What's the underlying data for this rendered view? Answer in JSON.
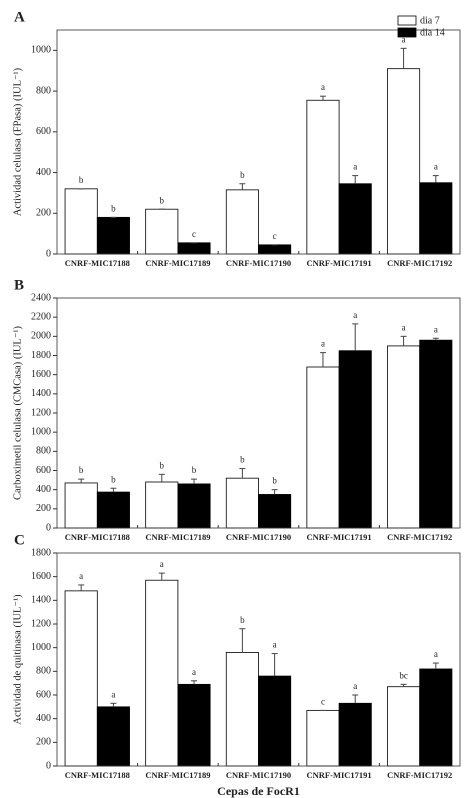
{
  "chart_data": [
    {
      "type": "bar",
      "panel": "A",
      "ylabel": "Actividad celulasa (FPasa) (IUL⁻¹)",
      "categories": [
        "CNRF-MIC17188",
        "CNRF-MIC17189",
        "CNRF-MIC17190",
        "CNRF-MIC17191",
        "CNRF-MIC17192"
      ],
      "series": [
        {
          "name": "dia 7",
          "color": "#ffffff",
          "values": [
            320,
            220,
            315,
            755,
            910
          ],
          "errors": [
            0,
            0,
            30,
            20,
            100
          ],
          "letters": [
            "b",
            "b",
            "b",
            "a",
            "a"
          ]
        },
        {
          "name": "dia 14",
          "color": "#000000",
          "values": [
            180,
            55,
            45,
            345,
            350
          ],
          "errors": [
            0,
            0,
            0,
            40,
            35
          ],
          "letters": [
            "b",
            "c",
            "c",
            "a",
            "a"
          ]
        }
      ],
      "ylim": [
        0,
        1100
      ],
      "yticks": [
        0,
        200,
        400,
        600,
        800,
        1000
      ],
      "legend": "upper right"
    },
    {
      "type": "bar",
      "panel": "B",
      "ylabel": "Carboximetil celulasa (CMCasa) (IUL⁻¹)",
      "categories": [
        "CNRF-MIC17188",
        "CNRF-MIC17189",
        "CNRF-MIC17190",
        "CNRF-MIC17191",
        "CNRF-MIC17192"
      ],
      "series": [
        {
          "color": "#ffffff",
          "values": [
            470,
            480,
            520,
            1680,
            1900
          ],
          "errors": [
            40,
            80,
            100,
            150,
            100
          ],
          "letters": [
            "b",
            "b",
            "b",
            "a",
            "a"
          ]
        },
        {
          "color": "#000000",
          "values": [
            375,
            460,
            350,
            1850,
            1960
          ],
          "errors": [
            40,
            50,
            50,
            280,
            20
          ],
          "letters": [
            "b",
            "b",
            "b",
            "a",
            "a"
          ]
        }
      ],
      "ylim": [
        0,
        2400
      ],
      "yticks": [
        0,
        200,
        400,
        600,
        800,
        1000,
        1200,
        1400,
        1600,
        1800,
        2000,
        2200,
        2400
      ]
    },
    {
      "type": "bar",
      "panel": "C",
      "ylabel": "Actividad de quitinasa (IUL⁻¹)",
      "xlabel": "Cepas de FocR1",
      "categories": [
        "CNRF-MIC17188",
        "CNRF-MIC17189",
        "CNRF-MIC17190",
        "CNRF-MIC17191",
        "CNRF-MIC17192"
      ],
      "series": [
        {
          "color": "#ffffff",
          "values": [
            1480,
            1570,
            960,
            470,
            670
          ],
          "errors": [
            50,
            60,
            200,
            0,
            20
          ],
          "letters": [
            "a",
            "a",
            "b",
            "c",
            "bc"
          ]
        },
        {
          "color": "#000000",
          "values": [
            500,
            690,
            760,
            530,
            820
          ],
          "errors": [
            30,
            30,
            190,
            70,
            50
          ],
          "letters": [
            "a",
            "a",
            "a",
            "a",
            "a"
          ]
        }
      ],
      "ylim": [
        0,
        1800
      ],
      "yticks": [
        0,
        200,
        400,
        600,
        800,
        1000,
        1200,
        1400,
        1600,
        1800
      ]
    }
  ]
}
